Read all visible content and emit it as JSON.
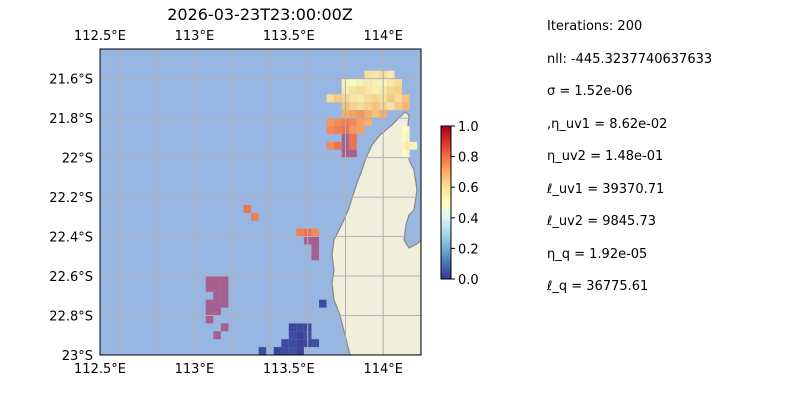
{
  "chart_data": {
    "type": "heatmap",
    "title": "2026-03-23T23:00:00Z",
    "x_ticks": [
      "112.5°E",
      "113°E",
      "113.5°E",
      "114°E"
    ],
    "x_tick_values": [
      112.5,
      113.0,
      113.5,
      114.0
    ],
    "y_ticks": [
      "21.6°S",
      "21.8°S",
      "22°S",
      "22.2°S",
      "22.4°S",
      "22.6°S",
      "22.8°S",
      "23°S"
    ],
    "y_tick_values": [
      -21.6,
      -21.8,
      -22.0,
      -22.2,
      -22.4,
      -22.6,
      -22.8,
      -23.0
    ],
    "xlim": [
      112.5,
      114.2
    ],
    "ylim": [
      -23.0,
      -21.45
    ],
    "grid": true,
    "colormap": "RdYlBu_r",
    "colorbar": {
      "ticks": [
        "0.0",
        "0.2",
        "0.4",
        "0.6",
        "0.8",
        "1.0"
      ],
      "tick_values": [
        0,
        0.2,
        0.4,
        0.6,
        0.8,
        1.0
      ],
      "range": [
        0,
        1
      ]
    },
    "ocean_color": "#97b6e2",
    "land_color": "#efefdb",
    "coast_color": "#888888",
    "grid_color": "#b0b0b0",
    "cell_deg": 0.04,
    "cells": [
      [
        113.92,
        -21.58,
        0.58
      ],
      [
        113.96,
        -21.58,
        0.56
      ],
      [
        114.0,
        -21.58,
        0.6
      ],
      [
        114.04,
        -21.58,
        0.55
      ],
      [
        113.8,
        -21.62,
        0.52
      ],
      [
        113.84,
        -21.62,
        0.5
      ],
      [
        113.88,
        -21.62,
        0.53
      ],
      [
        113.92,
        -21.62,
        0.55
      ],
      [
        113.96,
        -21.62,
        0.54
      ],
      [
        114.0,
        -21.62,
        0.52
      ],
      [
        114.04,
        -21.62,
        0.57
      ],
      [
        114.08,
        -21.62,
        0.6
      ],
      [
        113.8,
        -21.66,
        0.55
      ],
      [
        113.84,
        -21.66,
        0.58
      ],
      [
        113.88,
        -21.66,
        0.6
      ],
      [
        113.92,
        -21.66,
        0.56
      ],
      [
        113.96,
        -21.66,
        0.54
      ],
      [
        114.0,
        -21.66,
        0.57
      ],
      [
        114.04,
        -21.66,
        0.62
      ],
      [
        114.08,
        -21.66,
        0.63
      ],
      [
        113.72,
        -21.7,
        0.6
      ],
      [
        113.76,
        -21.7,
        0.64
      ],
      [
        113.8,
        -21.7,
        0.62
      ],
      [
        113.84,
        -21.7,
        0.56
      ],
      [
        113.88,
        -21.7,
        0.55
      ],
      [
        113.92,
        -21.7,
        0.6
      ],
      [
        113.96,
        -21.7,
        0.62
      ],
      [
        114.0,
        -21.7,
        0.58
      ],
      [
        114.04,
        -21.7,
        0.64
      ],
      [
        114.08,
        -21.7,
        0.6
      ],
      [
        114.12,
        -21.7,
        0.66
      ],
      [
        113.8,
        -21.74,
        0.66
      ],
      [
        113.84,
        -21.74,
        0.62
      ],
      [
        113.88,
        -21.74,
        0.6
      ],
      [
        113.92,
        -21.74,
        0.63
      ],
      [
        113.96,
        -21.74,
        0.66
      ],
      [
        114.0,
        -21.74,
        0.62
      ],
      [
        114.04,
        -21.74,
        0.58
      ],
      [
        114.08,
        -21.74,
        0.64
      ],
      [
        114.12,
        -21.74,
        0.68
      ],
      [
        113.8,
        -21.78,
        0.7
      ],
      [
        113.84,
        -21.78,
        0.72
      ],
      [
        113.88,
        -21.78,
        0.74
      ],
      [
        113.92,
        -21.78,
        0.7
      ],
      [
        113.96,
        -21.78,
        0.66
      ],
      [
        114.0,
        -21.78,
        0.7
      ],
      [
        113.72,
        -21.82,
        0.74
      ],
      [
        113.76,
        -21.82,
        0.76
      ],
      [
        113.8,
        -21.82,
        0.78
      ],
      [
        113.84,
        -21.82,
        0.76
      ],
      [
        113.88,
        -21.82,
        0.72
      ],
      [
        113.92,
        -21.82,
        0.7
      ],
      [
        113.72,
        -21.86,
        0.76
      ],
      [
        113.76,
        -21.86,
        0.78
      ],
      [
        113.8,
        -21.86,
        0.8
      ],
      [
        113.84,
        -21.86,
        0.74
      ],
      [
        113.88,
        -21.86,
        0.72
      ],
      [
        114.12,
        -21.86,
        0.5
      ],
      [
        113.8,
        -21.9,
        0.82
      ],
      [
        113.84,
        -21.9,
        0.8
      ],
      [
        114.12,
        -21.9,
        0.52
      ],
      [
        113.72,
        -21.94,
        0.76
      ],
      [
        113.76,
        -21.94,
        0.8
      ],
      [
        113.8,
        -21.94,
        0.82
      ],
      [
        113.84,
        -21.94,
        0.8
      ],
      [
        114.12,
        -21.94,
        0.55
      ],
      [
        114.16,
        -21.94,
        0.52
      ],
      [
        113.8,
        -21.98,
        0.84
      ],
      [
        113.84,
        -21.98,
        0.82
      ],
      [
        114.12,
        -21.98,
        0.48
      ],
      [
        113.28,
        -22.26,
        0.8
      ],
      [
        113.32,
        -22.3,
        0.78
      ],
      [
        113.56,
        -22.38,
        0.78
      ],
      [
        113.6,
        -22.38,
        0.8
      ],
      [
        113.64,
        -22.38,
        0.76
      ],
      [
        113.6,
        -22.42,
        0.86
      ],
      [
        113.64,
        -22.42,
        0.86
      ],
      [
        113.64,
        -22.46,
        0.86
      ],
      [
        113.64,
        -22.5,
        0.88
      ],
      [
        113.08,
        -22.62,
        0.84
      ],
      [
        113.12,
        -22.62,
        0.86
      ],
      [
        113.16,
        -22.62,
        0.82
      ],
      [
        113.08,
        -22.66,
        0.82
      ],
      [
        113.12,
        -22.66,
        0.84
      ],
      [
        113.16,
        -22.66,
        0.86
      ],
      [
        113.12,
        -22.7,
        0.84
      ],
      [
        113.16,
        -22.7,
        0.86
      ],
      [
        113.08,
        -22.74,
        0.86
      ],
      [
        113.12,
        -22.74,
        0.88
      ],
      [
        113.16,
        -22.74,
        0.86
      ],
      [
        113.08,
        -22.78,
        0.82
      ],
      [
        113.12,
        -22.78,
        0.84
      ],
      [
        113.08,
        -22.82,
        0.86
      ],
      [
        113.16,
        -22.86,
        0.86
      ],
      [
        113.12,
        -22.9,
        0.88
      ],
      [
        113.68,
        -22.74,
        0.02
      ],
      [
        113.52,
        -22.86,
        0.01
      ],
      [
        113.56,
        -22.86,
        0.02
      ],
      [
        113.6,
        -22.86,
        0.02
      ],
      [
        113.52,
        -22.9,
        0.02
      ],
      [
        113.56,
        -22.9,
        0.01
      ],
      [
        113.6,
        -22.9,
        0.03
      ],
      [
        113.48,
        -22.94,
        0.02
      ],
      [
        113.52,
        -22.94,
        0.02
      ],
      [
        113.56,
        -22.94,
        0.01
      ],
      [
        113.6,
        -22.94,
        0.02
      ],
      [
        113.64,
        -22.94,
        0.03
      ],
      [
        113.44,
        -22.98,
        0.01
      ],
      [
        113.48,
        -22.98,
        0.02
      ],
      [
        113.52,
        -22.98,
        0.03
      ],
      [
        113.56,
        -22.98,
        0.01
      ],
      [
        113.36,
        -22.98,
        0.02
      ]
    ]
  },
  "stats": [
    "Iterations: 200",
    "nll: -445.3237740637633",
    "σ = 1.52e-06",
    ",η_uv1 = 8.62e-02",
    "η_uv2 = 1.48e-01",
    "ℓ_uv1 = 39370.71",
    "ℓ_uv2 = 9845.73",
    "η_q = 1.92e-05",
    "ℓ_q = 36775.61"
  ]
}
